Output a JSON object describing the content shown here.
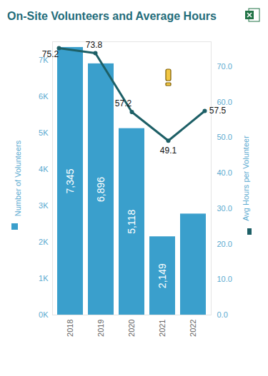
{
  "chart_data": {
    "type": "bar",
    "title": "On-Site Volunteers and Average Hours",
    "categories": [
      "2018",
      "2019",
      "2020",
      "2021",
      "2022"
    ],
    "series": [
      {
        "name": "Number of Volunteers",
        "type": "bar",
        "color": "#3a9fcc",
        "values": [
          7345,
          6896,
          5118,
          2149,
          2773
        ],
        "value_labels": [
          "7,345",
          "6,896",
          "5,118",
          "2,149",
          null
        ],
        "data_labels": true
      },
      {
        "name": "Avg Hours per Volunteer",
        "type": "line",
        "axis": "y2",
        "color": "#1d5f66",
        "values": [
          75.2,
          73.8,
          57.2,
          49.1,
          57.5
        ],
        "data_labels": true,
        "marker": "circle"
      }
    ],
    "ylim": [
      0,
      7500
    ],
    "yticks": [
      {
        "value": 0,
        "label": "0K"
      },
      {
        "value": 1000,
        "label": "1K"
      },
      {
        "value": 2000,
        "label": "2K"
      },
      {
        "value": 3000,
        "label": "3K"
      },
      {
        "value": 4000,
        "label": "4K"
      },
      {
        "value": 5000,
        "label": "5K"
      },
      {
        "value": 6000,
        "label": "6K"
      },
      {
        "value": 7000,
        "label": "7K"
      }
    ],
    "y2lim": [
      0,
      77
    ],
    "y2ticks": [
      {
        "value": 0,
        "label": "0.0"
      },
      {
        "value": 10,
        "label": "10.0"
      },
      {
        "value": 20,
        "label": "20.0"
      },
      {
        "value": 30,
        "label": "30.0"
      },
      {
        "value": 40,
        "label": "40.0"
      },
      {
        "value": 50,
        "label": "50.0"
      },
      {
        "value": 60,
        "label": "60.0"
      },
      {
        "value": 70,
        "label": "70.0"
      }
    ],
    "grid": false
  }
}
